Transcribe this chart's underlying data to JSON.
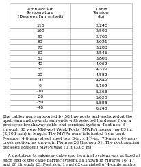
{
  "header1": "Ambient Air\nTemperature\n(Degrees Fahrenheit)",
  "header2": "Cable\nTension\n(lb)",
  "rows": [
    [
      "110",
      "2,248"
    ],
    [
      "100",
      "2,500"
    ],
    [
      "90",
      "2,760"
    ],
    [
      "80",
      "3,021"
    ],
    [
      "70",
      "3,283"
    ],
    [
      "60",
      "3,545"
    ],
    [
      "50",
      "3,806"
    ],
    [
      "40",
      "4,062"
    ],
    [
      "30",
      "4,322"
    ],
    [
      "20",
      "4,582"
    ],
    [
      "10",
      "4,842"
    ],
    [
      "0",
      "5,102"
    ],
    [
      "-10",
      "5,363"
    ],
    [
      "-20",
      "5,623"
    ],
    [
      "-30",
      "5,883"
    ],
    [
      "-40",
      "6,143"
    ]
  ],
  "para1": "The cables were supported by 58 line posts and anchored at the upstream and downstream ends with selected hardware from a prototype breakaway cable end terminal system. Post nos. 3 through 60 were Midwest Weak Posts (MWPs) measuring 83 in. (2,108 mm) in length. The MWPs were fabricated from bent 7-gauge (4.6-mm) sheet steel to a 3-in. x 1¾-in. (76-mm x 44-mm) cross section, as shown in Figures 28 through 31. The post spacing between adjacent MWPs was 10 ft (3.05 m).",
  "para2": "A prototype breakaway cable end terminal system was utilized at each end of the cable barrier system, as shown in Figures 16, 17 and 20 through 23. Post nos. 1 and 62 consisted of 4-cable anchor bracket assemblies that were anchored to reinforced concrete foundations at both ends of the system. Post nos. 2 and 61 were slip-base support posts with attached hanger",
  "bg_color": "#ffffff",
  "text_color": "#000000",
  "font_size": 4.5,
  "header_font_size": 4.5,
  "para_font_size": 4.2
}
